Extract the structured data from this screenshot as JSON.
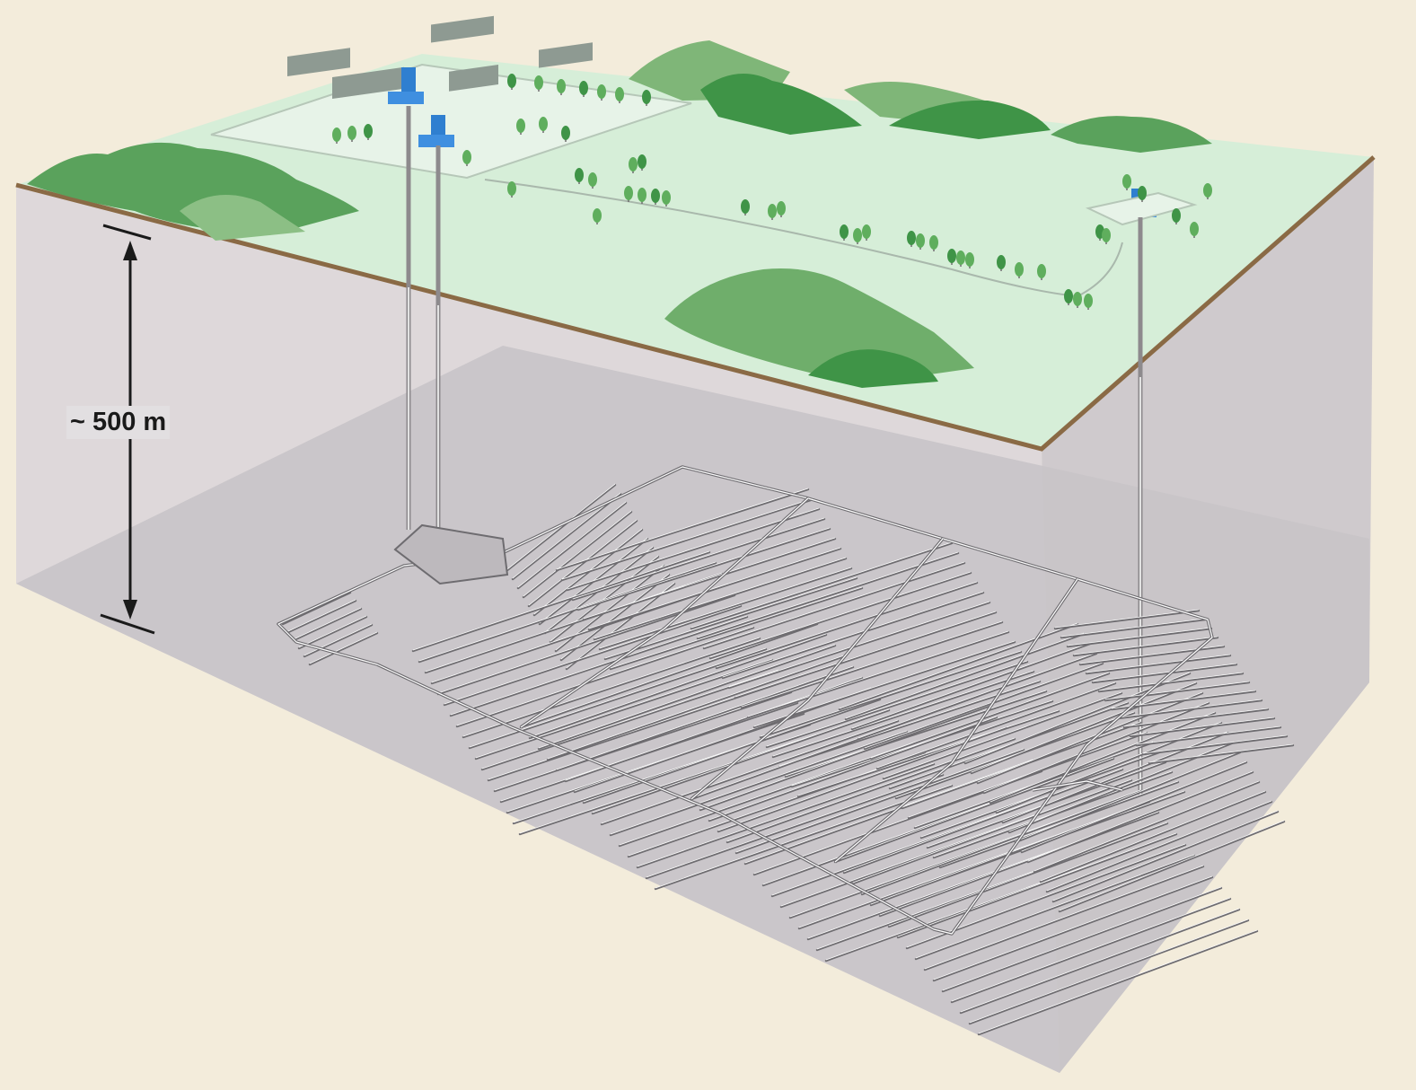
{
  "depth_annotation": {
    "label": "~ 500 m"
  },
  "colors": {
    "background": "#f3ecdb",
    "ground_surface": "#d7eedb",
    "surface_edge": "#8a6a45",
    "rock_block": "#dcd7da",
    "repository_level": "#c9c5c9",
    "hills_dark": "#4c9a4e",
    "hills_light": "#7fb678",
    "shaft_buildings": "#2f7fd0",
    "tunnel_lines": "#ffffff"
  },
  "icons": {
    "shaft_tower": "shaft-tower-icon",
    "tree": "tree-icon"
  }
}
